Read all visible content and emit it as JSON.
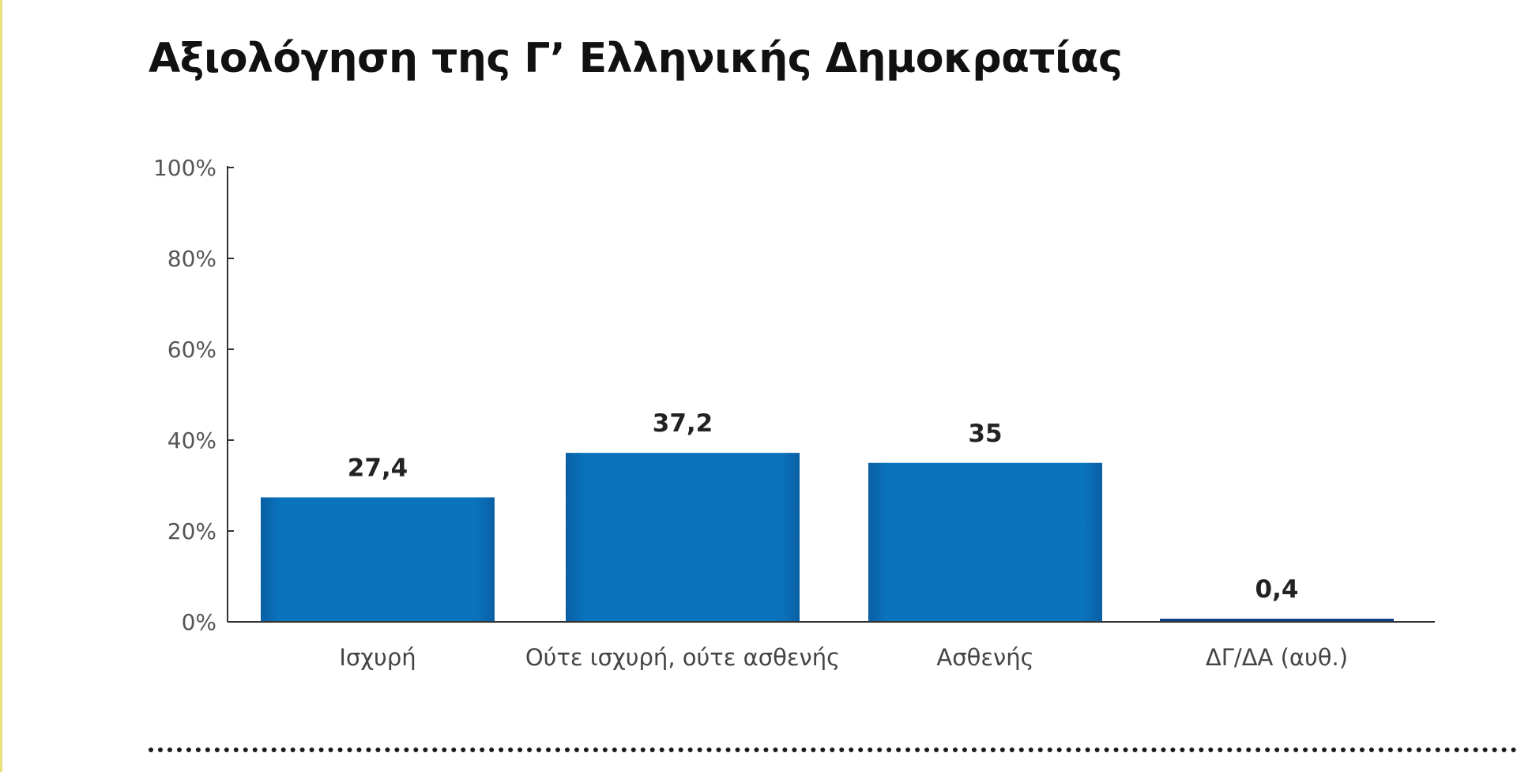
{
  "chart_data": {
    "type": "bar",
    "title": "Αξιολόγηση της Γ’ Ελληνικής Δημοκρατίας",
    "categories": [
      "Ισχυρή",
      "Ούτε ισχυρή, ούτε ασθενής",
      "Ασθενής",
      "ΔΓ/ΔΑ (αυθ.)"
    ],
    "values": [
      27.4,
      37.2,
      35,
      0.4
    ],
    "value_labels": [
      "27,4",
      "37,2",
      "35",
      "0,4"
    ],
    "xlabel": "",
    "ylabel": "",
    "ylim": [
      0,
      100
    ],
    "yticks": [
      0,
      20,
      40,
      60,
      80,
      100
    ],
    "ytick_labels": [
      "0%",
      "20%",
      "40%",
      "60%",
      "80%",
      "100%"
    ],
    "grid": false,
    "colors": {
      "bar": "#0a73bd",
      "bar_low": "#0b3d8c",
      "axis": "#333333"
    }
  }
}
